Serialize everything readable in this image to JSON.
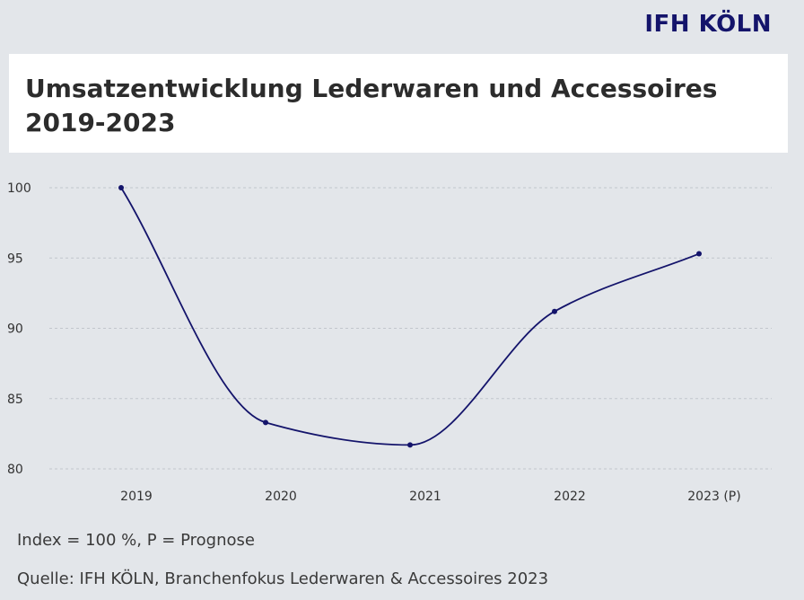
{
  "logo": "IFH KÖLN",
  "title": "Umsatzentwicklung Lederwaren und Accessoires 2019-2023",
  "note": "Index = 100 %, P = Prognose",
  "source": "Quelle: IFH KÖLN, Branchenfokus Lederwaren & Accessoires 2023",
  "colors": {
    "line": "#14146b",
    "grid": "#c2c6cc",
    "background": "#e3e6ea"
  },
  "chart_data": {
    "type": "line",
    "categories": [
      "2019",
      "2020",
      "2021",
      "2022",
      "2023 (P)"
    ],
    "series": [
      {
        "values": [
          100,
          83.3,
          81.7,
          91.2,
          95.3
        ]
      }
    ],
    "ylim": [
      80,
      100
    ],
    "yticks": [
      100,
      95,
      90,
      85,
      80
    ],
    "grid": true,
    "smooth": true,
    "xlabel": "",
    "ylabel": ""
  }
}
